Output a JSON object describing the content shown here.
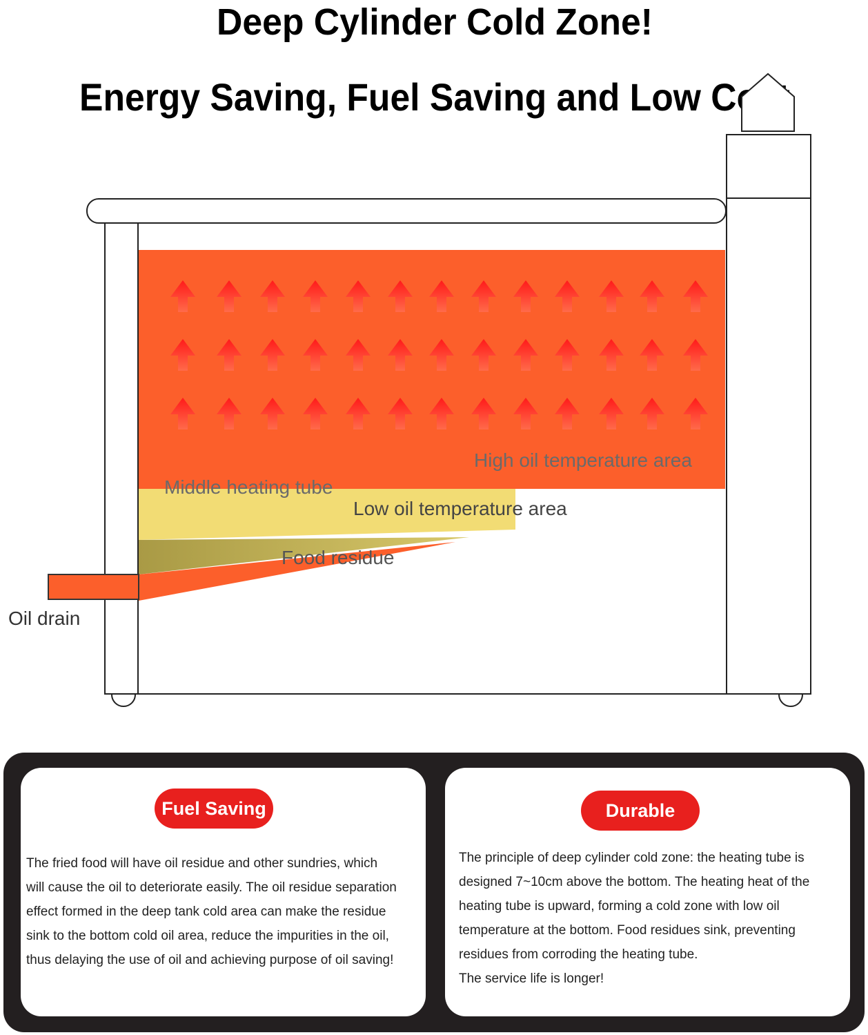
{
  "header": {
    "title": "Deep Cylinder Cold Zone!",
    "subtitle": "Energy Saving, Fuel Saving and Low Cost"
  },
  "diagram": {
    "labels": {
      "high": "High oil temperature area",
      "tube": "Middle heating tube",
      "low": "Low oil temperature area",
      "residue": "Food residue",
      "drain": "Oil drain"
    }
  },
  "cards": [
    {
      "heading": "Fuel Saving",
      "lines": [
        "The fried food will have oil residue and other sundries, which",
        "will cause the oil to deteriorate easily. The oil residue separation",
        "effect formed in the deep tank cold area can make the residue",
        "sink to the bottom cold oil area, reduce the impurities in the oil,",
        "thus delaying the use of oil and achieving purpose of oil saving!"
      ]
    },
    {
      "heading": "Durable",
      "lines": [
        "The principle of deep cylinder cold zone: the heating tube is",
        "designed 7~10cm above the bottom. The heating heat of the",
        "heating tube is upward, forming a cold zone with low oil",
        "temperature at the bottom. Food residues sink, preventing",
        "residues from corroding the heating tube.",
        "The service life is longer!"
      ]
    }
  ]
}
